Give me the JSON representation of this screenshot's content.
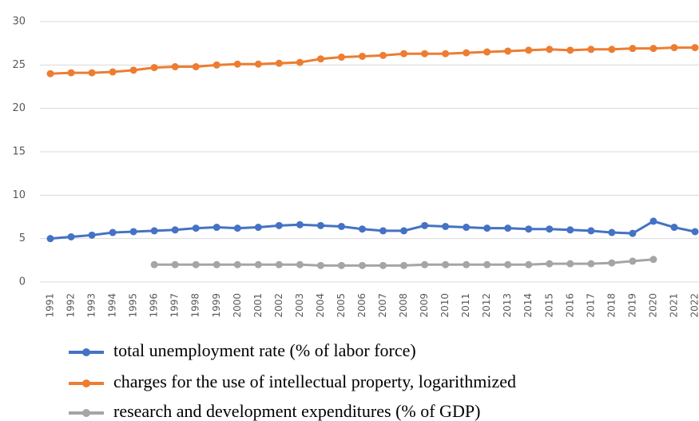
{
  "chart_data": {
    "type": "line",
    "categories": [
      "1991",
      "1992",
      "1993",
      "1994",
      "1995",
      "1996",
      "1997",
      "1998",
      "1999",
      "2000",
      "2001",
      "2002",
      "2003",
      "2004",
      "2005",
      "2006",
      "2007",
      "2008",
      "2009",
      "2010",
      "2011",
      "2012",
      "2013",
      "2014",
      "2015",
      "2016",
      "2017",
      "2018",
      "2019",
      "2020",
      "2021",
      "2022"
    ],
    "series": [
      {
        "name": "total unemployment rate (% of labor force)",
        "color": "#4472c4",
        "values": [
          5.0,
          5.2,
          5.4,
          5.7,
          5.8,
          5.9,
          6.0,
          6.2,
          6.3,
          6.2,
          6.3,
          6.5,
          6.6,
          6.5,
          6.4,
          6.1,
          5.9,
          5.9,
          6.5,
          6.4,
          6.3,
          6.2,
          6.2,
          6.1,
          6.1,
          6.0,
          5.9,
          5.7,
          5.6,
          7.0,
          6.3,
          5.8
        ]
      },
      {
        "name": "charges for the use of intellectual property, logarithmized",
        "color": "#ed7d31",
        "values": [
          24.0,
          24.1,
          24.1,
          24.2,
          24.4,
          24.7,
          24.8,
          24.8,
          25.0,
          25.1,
          25.1,
          25.2,
          25.3,
          25.7,
          25.9,
          26.0,
          26.1,
          26.3,
          26.3,
          26.3,
          26.4,
          26.5,
          26.6,
          26.7,
          26.8,
          26.7,
          26.8,
          26.8,
          26.9,
          26.9,
          27.0,
          27.0
        ]
      },
      {
        "name": "research and development expenditures (% of GDP)",
        "color": "#a5a5a5",
        "values": [
          null,
          null,
          null,
          null,
          null,
          2.0,
          2.0,
          2.0,
          2.0,
          2.0,
          2.0,
          2.0,
          2.0,
          1.9,
          1.9,
          1.9,
          1.9,
          1.9,
          2.0,
          2.0,
          2.0,
          2.0,
          2.0,
          2.0,
          2.1,
          2.1,
          2.1,
          2.2,
          2.4,
          2.6,
          null,
          null
        ]
      }
    ],
    "ylim": [
      0,
      30
    ],
    "yticks": [
      0,
      5,
      10,
      15,
      20,
      25,
      30
    ],
    "grid": true,
    "legend": "bottom"
  }
}
